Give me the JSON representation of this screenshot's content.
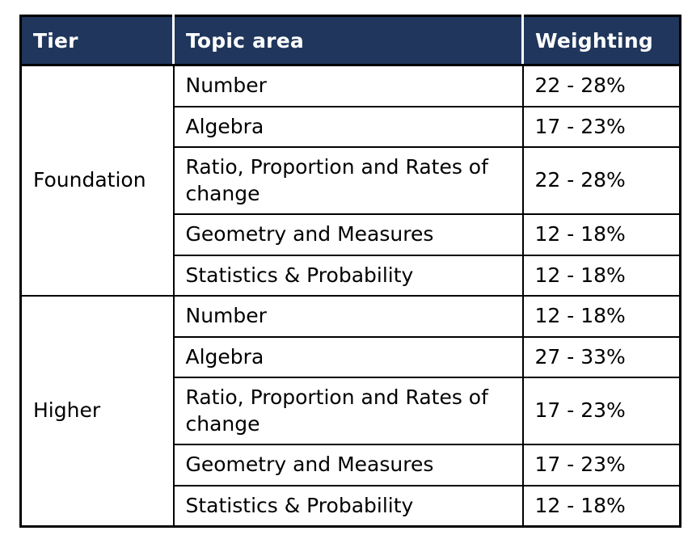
{
  "table": {
    "name": "tier-topic-weighting-table",
    "headers": [
      {
        "label": "Tier"
      },
      {
        "label": "Topic area"
      },
      {
        "label": "Weighting"
      }
    ],
    "sections": [
      {
        "tier": "Foundation",
        "rows": [
          {
            "topic": "Number",
            "weighting": "22 - 28%"
          },
          {
            "topic": "Algebra",
            "weighting": "17 - 23%"
          },
          {
            "topic": "Ratio, Proportion and Rates of change",
            "weighting": "22 - 28%"
          },
          {
            "topic": "Geometry and Measures",
            "weighting": "12 - 18%"
          },
          {
            "topic": "Statistics & Probability",
            "weighting": "12 - 18%"
          }
        ]
      },
      {
        "tier": "Higher",
        "rows": [
          {
            "topic": "Number",
            "weighting": "12 - 18%"
          },
          {
            "topic": "Algebra",
            "weighting": "27 - 33%"
          },
          {
            "topic": "Ratio, Proportion and Rates of change",
            "weighting": "17 - 23%"
          },
          {
            "topic": "Geometry and Measures",
            "weighting": "17 - 23%"
          },
          {
            "topic": "Statistics & Probability",
            "weighting": "12 - 18%"
          }
        ]
      }
    ],
    "colors": {
      "header_bg": "#20365c",
      "header_text": "#ffffff",
      "border": "#000000",
      "body_bg": "#ffffff",
      "body_text": "#000000"
    }
  }
}
